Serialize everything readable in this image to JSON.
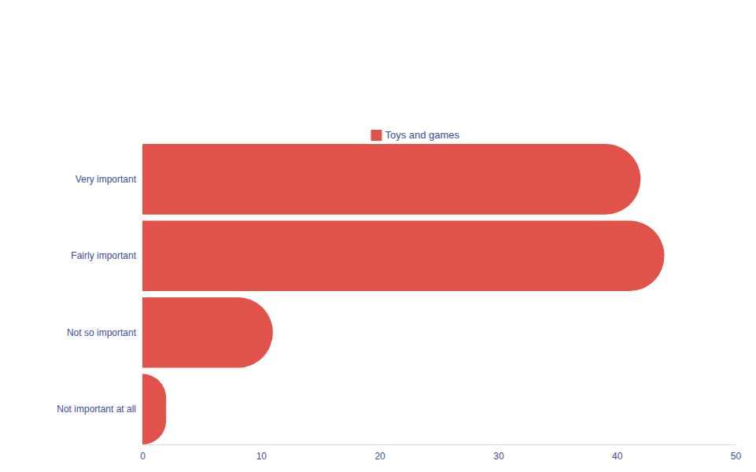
{
  "chart_data": {
    "type": "bar",
    "orientation": "horizontal",
    "categories": [
      "Very important",
      "Fairly important",
      "Not so important",
      "Not important at all"
    ],
    "series": [
      {
        "name": "Toys and games",
        "color": "#e0524a",
        "values": [
          42,
          44,
          11,
          2
        ]
      }
    ],
    "xlim": [
      0,
      50
    ],
    "xticks": [
      0,
      10,
      20,
      30,
      40,
      50
    ],
    "grid": false,
    "legend": "top"
  }
}
